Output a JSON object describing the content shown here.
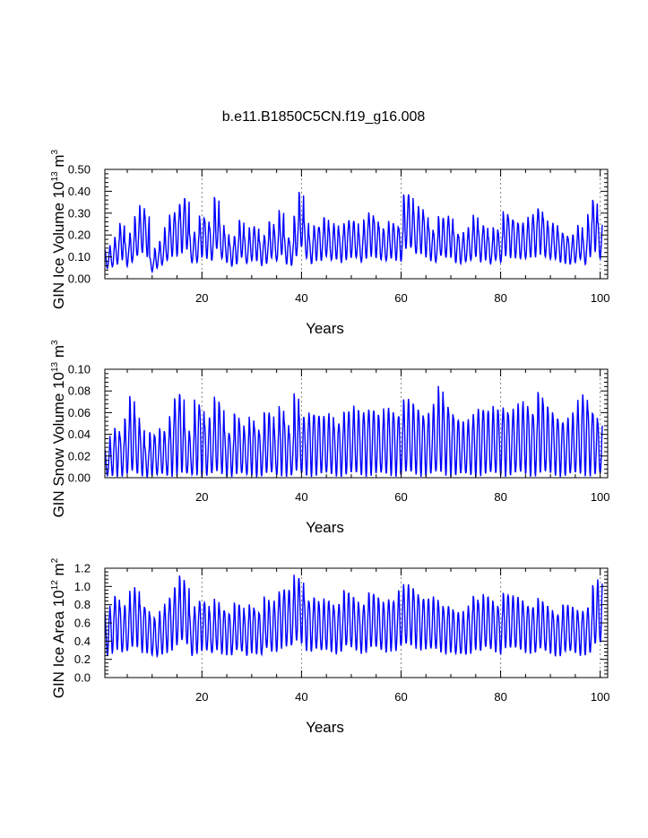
{
  "title": "b.e11.B1850C5CN.f19_g16.008",
  "colors": {
    "series": "#0000ff",
    "axes": "#000000",
    "grid": "#888888"
  },
  "chart_data": [
    {
      "type": "line",
      "xlabel": "Years",
      "ylabel": {
        "text": "GIN Ice Volume 10",
        "sup1": "13",
        "unit": " m",
        "sup2": "3"
      },
      "xlim": [
        0.5,
        101.5
      ],
      "ylim": [
        0.0,
        0.5
      ],
      "yticks": [
        "0.00",
        "0.10",
        "0.20",
        "0.30",
        "0.40",
        "0.50"
      ],
      "xticks": [
        "20",
        "40",
        "60",
        "80",
        "100"
      ],
      "grid_x": [
        20,
        40,
        60,
        80,
        100
      ],
      "series": [
        {
          "name": "GIN Ice Volume",
          "values": [
            0.13,
            0.15,
            0.19,
            0.26,
            0.17,
            0.21,
            0.28,
            0.33,
            0.3,
            0.1,
            0.14,
            0.17,
            0.23,
            0.29,
            0.31,
            0.35,
            0.37,
            0.2,
            0.21,
            0.29,
            0.28,
            0.24,
            0.37,
            0.25,
            0.21,
            0.17,
            0.2,
            0.27,
            0.19,
            0.23,
            0.24,
            0.18,
            0.2,
            0.26,
            0.22,
            0.31,
            0.2,
            0.18,
            0.29,
            0.39,
            0.26,
            0.2,
            0.25,
            0.24,
            0.28,
            0.23,
            0.25,
            0.22,
            0.26,
            0.27,
            0.26,
            0.21,
            0.27,
            0.31,
            0.28,
            0.24,
            0.22,
            0.26,
            0.25,
            0.24,
            0.39,
            0.38,
            0.31,
            0.33,
            0.3,
            0.24,
            0.21,
            0.28,
            0.27,
            0.29,
            0.22,
            0.2,
            0.21,
            0.23,
            0.29,
            0.23,
            0.25,
            0.19,
            0.23,
            0.21,
            0.31,
            0.29,
            0.27,
            0.25,
            0.25,
            0.28,
            0.3,
            0.33,
            0.28,
            0.24,
            0.25,
            0.22,
            0.21,
            0.19,
            0.2,
            0.24,
            0.19,
            0.3,
            0.37,
            0.26,
            0.3
          ]
        }
      ]
    },
    {
      "type": "line",
      "xlabel": "Years",
      "ylabel": {
        "text": "GIN Snow Volume 10",
        "sup1": "13",
        "unit": " m",
        "sup2": "3"
      },
      "xlim": [
        0.5,
        101.5
      ],
      "ylim": [
        0.0,
        0.1
      ],
      "yticks": [
        "0.00",
        "0.02",
        "0.04",
        "0.06",
        "0.08",
        "0.10"
      ],
      "xticks": [
        "20",
        "40",
        "60",
        "80",
        "100"
      ],
      "grid_x": [
        20,
        40,
        60,
        80,
        100
      ],
      "series": [
        {
          "name": "GIN Snow Volume",
          "values": [
            0.025,
            0.038,
            0.047,
            0.04,
            0.055,
            0.073,
            0.057,
            0.047,
            0.03,
            0.043,
            0.038,
            0.044,
            0.041,
            0.058,
            0.076,
            0.078,
            0.045,
            0.04,
            0.072,
            0.068,
            0.05,
            0.055,
            0.072,
            0.065,
            0.045,
            0.041,
            0.06,
            0.05,
            0.043,
            0.056,
            0.049,
            0.042,
            0.06,
            0.058,
            0.045,
            0.067,
            0.054,
            0.042,
            0.076,
            0.057,
            0.055,
            0.062,
            0.06,
            0.057,
            0.055,
            0.058,
            0.05,
            0.052,
            0.062,
            0.06,
            0.064,
            0.06,
            0.062,
            0.065,
            0.062,
            0.055,
            0.062,
            0.065,
            0.06,
            0.058,
            0.071,
            0.07,
            0.066,
            0.063,
            0.057,
            0.06,
            0.066,
            0.082,
            0.07,
            0.065,
            0.057,
            0.052,
            0.05,
            0.053,
            0.06,
            0.066,
            0.063,
            0.06,
            0.064,
            0.062,
            0.067,
            0.06,
            0.063,
            0.066,
            0.069,
            0.064,
            0.06,
            0.08,
            0.068,
            0.062,
            0.058,
            0.055,
            0.052,
            0.055,
            0.058,
            0.07,
            0.078,
            0.066,
            0.06,
            0.05,
            0.03
          ]
        }
      ]
    },
    {
      "type": "line",
      "xlabel": "Years",
      "ylabel": {
        "text": "GIN Ice Area 10",
        "sup1": "12",
        "unit": " m",
        "sup2": "2"
      },
      "xlim": [
        0.5,
        101.5
      ],
      "ylim": [
        0.0,
        1.2
      ],
      "yticks": [
        "0.0",
        "0.2",
        "0.4",
        "0.6",
        "0.8",
        "1.0",
        "1.2"
      ],
      "xticks": [
        "20",
        "40",
        "60",
        "80",
        "100"
      ],
      "grid_x": [
        20,
        40,
        60,
        80,
        100
      ],
      "series": [
        {
          "name": "GIN Ice Area",
          "values": [
            0.7,
            0.8,
            0.92,
            0.78,
            0.78,
            0.93,
            0.99,
            0.83,
            0.78,
            0.68,
            0.63,
            0.72,
            0.82,
            0.9,
            1.0,
            1.1,
            1.0,
            0.7,
            0.8,
            0.86,
            0.82,
            0.72,
            0.85,
            0.77,
            0.75,
            0.7,
            0.81,
            0.78,
            0.7,
            0.82,
            0.76,
            0.7,
            0.87,
            0.8,
            0.85,
            0.97,
            0.98,
            0.95,
            1.1,
            1.08,
            0.9,
            0.85,
            0.88,
            0.8,
            0.85,
            0.84,
            0.78,
            0.82,
            0.95,
            0.9,
            0.86,
            0.8,
            0.82,
            0.94,
            0.9,
            0.84,
            0.82,
            0.88,
            0.85,
            0.95,
            1.0,
            1.01,
            0.97,
            0.9,
            0.87,
            0.85,
            0.87,
            0.82,
            0.78,
            0.8,
            0.72,
            0.7,
            0.72,
            0.8,
            0.92,
            0.83,
            0.9,
            0.86,
            0.82,
            0.78,
            0.95,
            0.9,
            0.88,
            0.87,
            0.82,
            0.8,
            0.78,
            0.86,
            0.8,
            0.77,
            0.72,
            0.7,
            0.8,
            0.78,
            0.76,
            0.72,
            0.75,
            0.78,
            1.0,
            1.05,
            0.88
          ]
        }
      ]
    }
  ]
}
